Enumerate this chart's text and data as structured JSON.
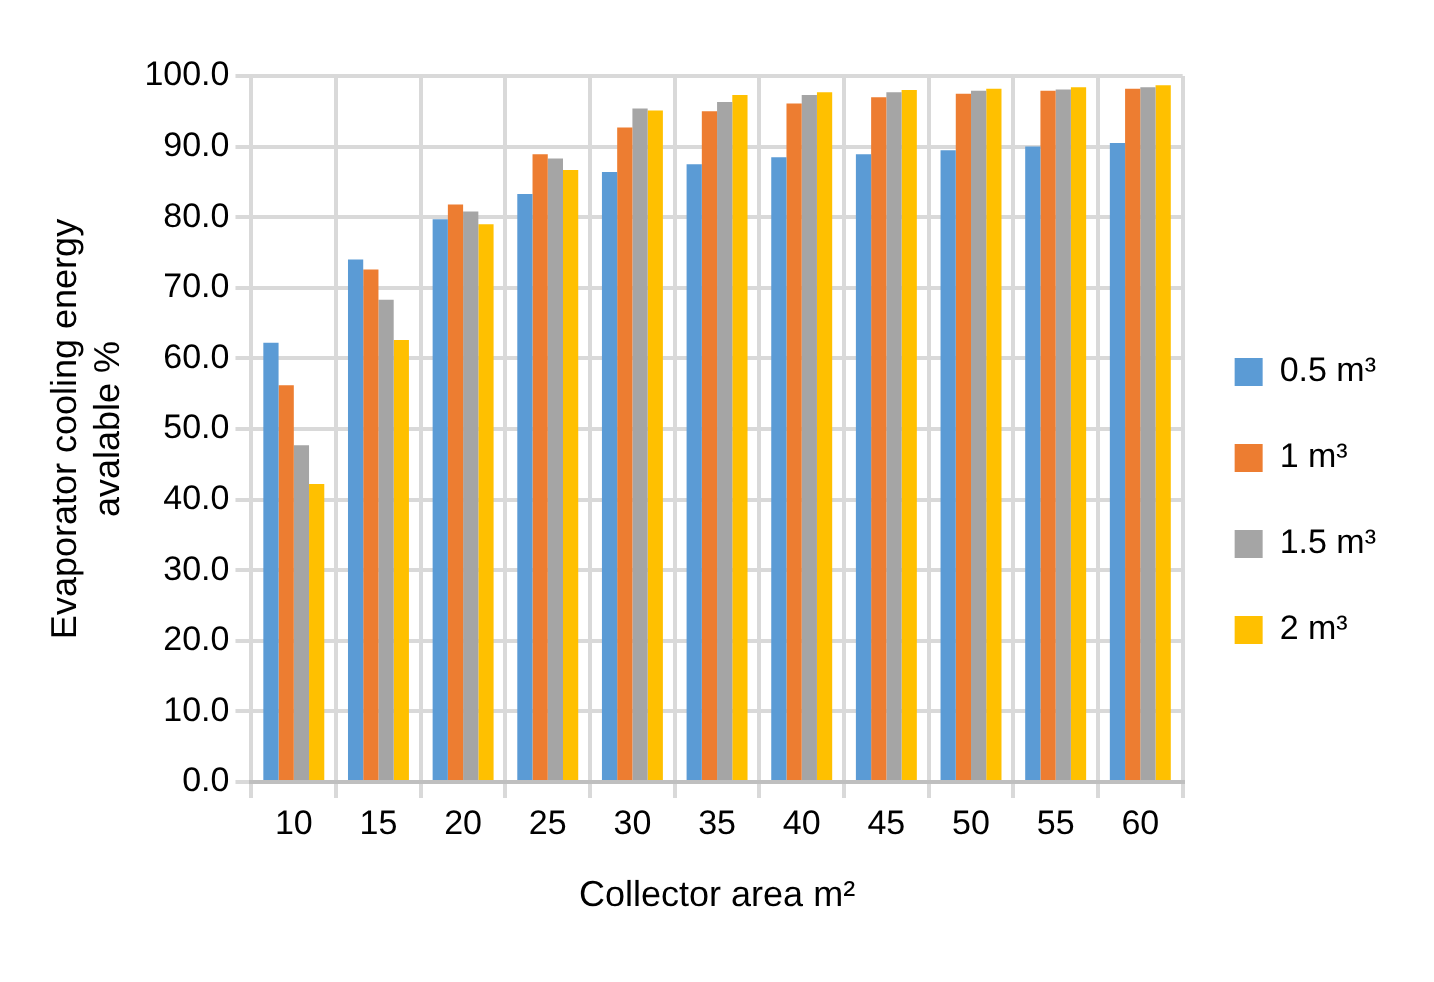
{
  "chart_data": {
    "type": "bar",
    "xlabel": "Collector area m²",
    "ylabel": "Evaporator cooling energy avalable %",
    "categories": [
      "10",
      "15",
      "20",
      "25",
      "30",
      "35",
      "40",
      "45",
      "50",
      "55",
      "60"
    ],
    "series": [
      {
        "name": "0.5 m³",
        "color": "#5b9bd5",
        "values": [
          62.2,
          74.0,
          79.7,
          83.3,
          86.4,
          87.5,
          88.5,
          88.9,
          89.5,
          90.0,
          90.5
        ]
      },
      {
        "name": "1 m³",
        "color": "#ed7d31",
        "values": [
          56.2,
          72.6,
          81.8,
          88.9,
          92.7,
          95.0,
          96.1,
          97.0,
          97.5,
          97.9,
          98.2
        ]
      },
      {
        "name": "1.5 m³",
        "color": "#a5a5a5",
        "values": [
          47.7,
          68.3,
          80.8,
          88.3,
          95.4,
          96.3,
          97.3,
          97.7,
          97.9,
          98.1,
          98.4
        ]
      },
      {
        "name": "2 m³",
        "color": "#ffc000",
        "values": [
          42.2,
          62.6,
          79.0,
          86.7,
          95.1,
          97.3,
          97.7,
          98.0,
          98.2,
          98.4,
          98.7
        ]
      }
    ],
    "ylim": [
      0,
      100
    ],
    "yticks": [
      {
        "value": 0,
        "label": "0.0"
      },
      {
        "value": 10,
        "label": "10.0"
      },
      {
        "value": 20,
        "label": "20.0"
      },
      {
        "value": 30,
        "label": "30.0"
      },
      {
        "value": 40,
        "label": "40.0"
      },
      {
        "value": 50,
        "label": "50.0"
      },
      {
        "value": 60,
        "label": "60.0"
      },
      {
        "value": 70,
        "label": "70.0"
      },
      {
        "value": 80,
        "label": "80.0"
      },
      {
        "value": 90,
        "label": "90.0"
      },
      {
        "value": 100,
        "label": "100.0"
      }
    ],
    "grid": true,
    "legend": "right"
  }
}
